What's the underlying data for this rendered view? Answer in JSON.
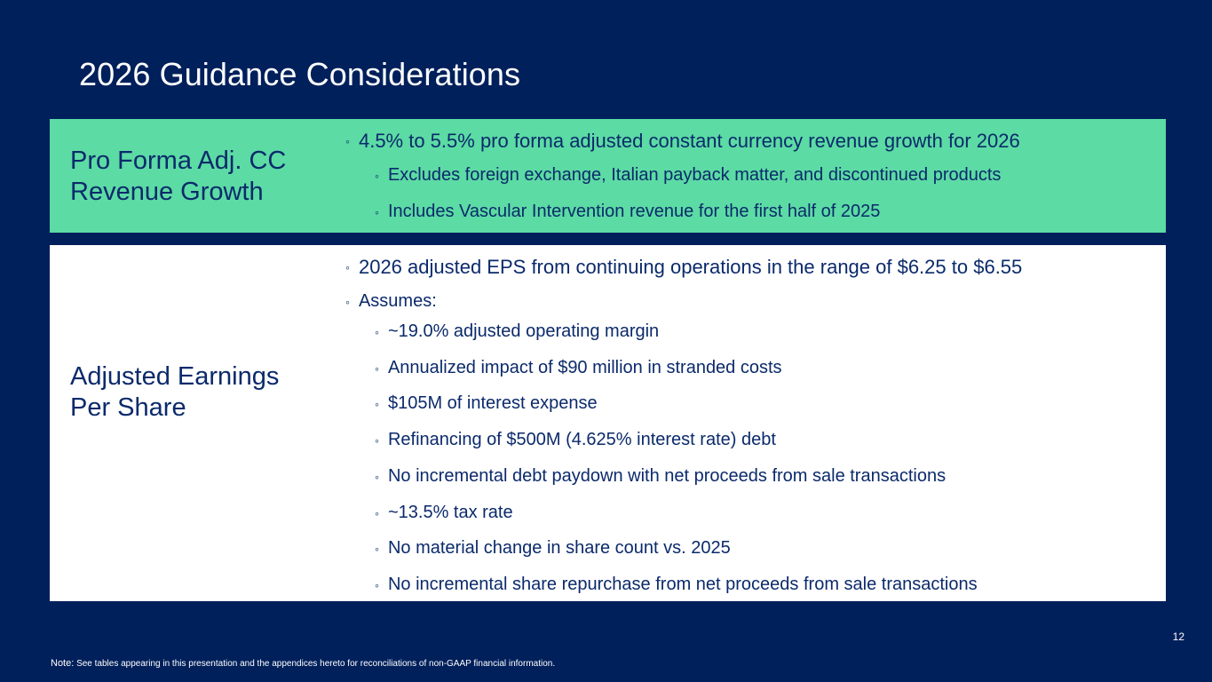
{
  "slide": {
    "title": "2026 Guidance Considerations",
    "page_number": "12"
  },
  "revenue_panel": {
    "label_line1": "Pro Forma Adj. CC",
    "label_line2": "Revenue Growth",
    "main_bullet": "4.5% to 5.5%  pro forma adjusted constant currency revenue growth for 2026",
    "sub_bullets": [
      "Excludes foreign exchange, Italian payback matter, and discontinued products",
      "Includes Vascular Intervention revenue for the first half of 2025"
    ]
  },
  "eps_panel": {
    "label_line1": "Adjusted Earnings",
    "label_line2": "Per Share",
    "main_bullet": "2026 adjusted EPS from continuing operations in the range of $6.25 to $6.55",
    "assumes_label": "Assumes:",
    "assumptions": [
      "~19.0% adjusted operating margin",
      "Annualized impact of $90 million in stranded costs",
      "$105M of interest expense",
      "Refinancing of $500M (4.625% interest rate) debt",
      "No incremental debt paydown with net proceeds from sale transactions",
      "~13.5% tax rate",
      "No material change in share count vs. 2025",
      "No incremental share repurchase from net proceeds from sale transactions"
    ]
  },
  "footer": {
    "note_label": "Note:",
    "note_text": "See tables appearing in this presentation and the appendices hereto for reconciliations of non-GAAP financial information."
  },
  "bullet_glyph": "◦"
}
